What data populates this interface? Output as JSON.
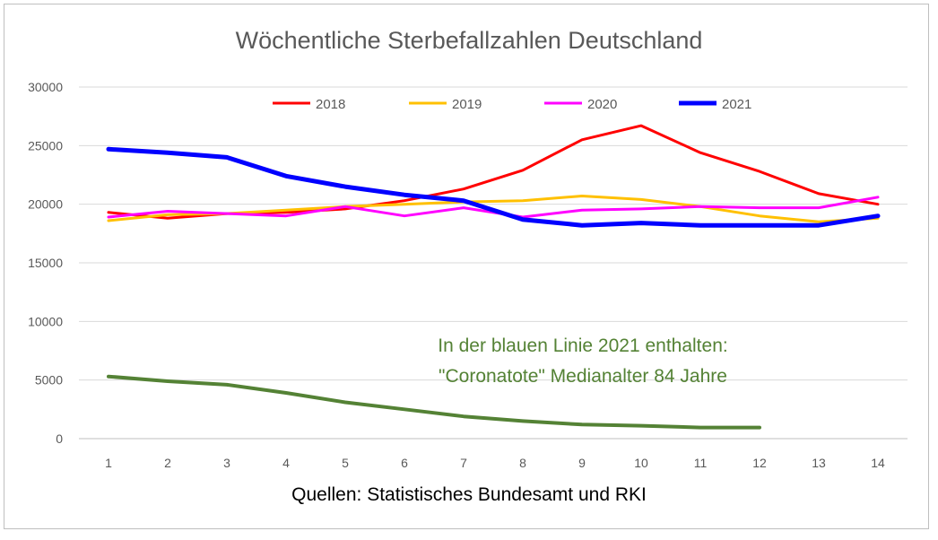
{
  "chart_data": {
    "type": "line",
    "title": "Wöchentliche Sterbefallzahlen Deutschland",
    "source": "Quellen: Statistisches Bundesamt und RKI",
    "annotation": [
      "In der blauen Linie 2021 enthalten:",
      "\"Coronatote\" Medianalter 84 Jahre"
    ],
    "x": [
      1,
      2,
      3,
      4,
      5,
      6,
      7,
      8,
      9,
      10,
      11,
      12,
      13,
      14
    ],
    "ylim": [
      0,
      30000
    ],
    "yticks": [
      0,
      5000,
      10000,
      15000,
      20000,
      25000,
      30000
    ],
    "grid": true,
    "legend_position": "top",
    "series": [
      {
        "name": "2018",
        "color": "#ff0000",
        "values": [
          19300,
          18800,
          19200,
          19300,
          19600,
          20300,
          21300,
          22900,
          25500,
          26700,
          24400,
          22800,
          20900,
          20000
        ]
      },
      {
        "name": "2019",
        "color": "#ffc000",
        "values": [
          18600,
          19100,
          19200,
          19500,
          19800,
          20000,
          20200,
          20300,
          20700,
          20400,
          19800,
          19000,
          18500,
          18800
        ]
      },
      {
        "name": "2020",
        "color": "#ff00ff",
        "values": [
          18900,
          19400,
          19200,
          19000,
          19800,
          19000,
          19700,
          18900,
          19500,
          19600,
          19800,
          19700,
          19700,
          20600
        ]
      },
      {
        "name": "2021",
        "color": "#0000ff",
        "values": [
          24700,
          24400,
          24000,
          22400,
          21500,
          20800,
          20300,
          18700,
          18200,
          18400,
          18200,
          18200,
          18200,
          19000
        ]
      },
      {
        "name": "",
        "color": "#548235",
        "values": [
          5300,
          4900,
          4600,
          3900,
          3100,
          2500,
          1900,
          1500,
          1200,
          1100,
          950,
          950,
          null,
          null
        ]
      }
    ]
  }
}
